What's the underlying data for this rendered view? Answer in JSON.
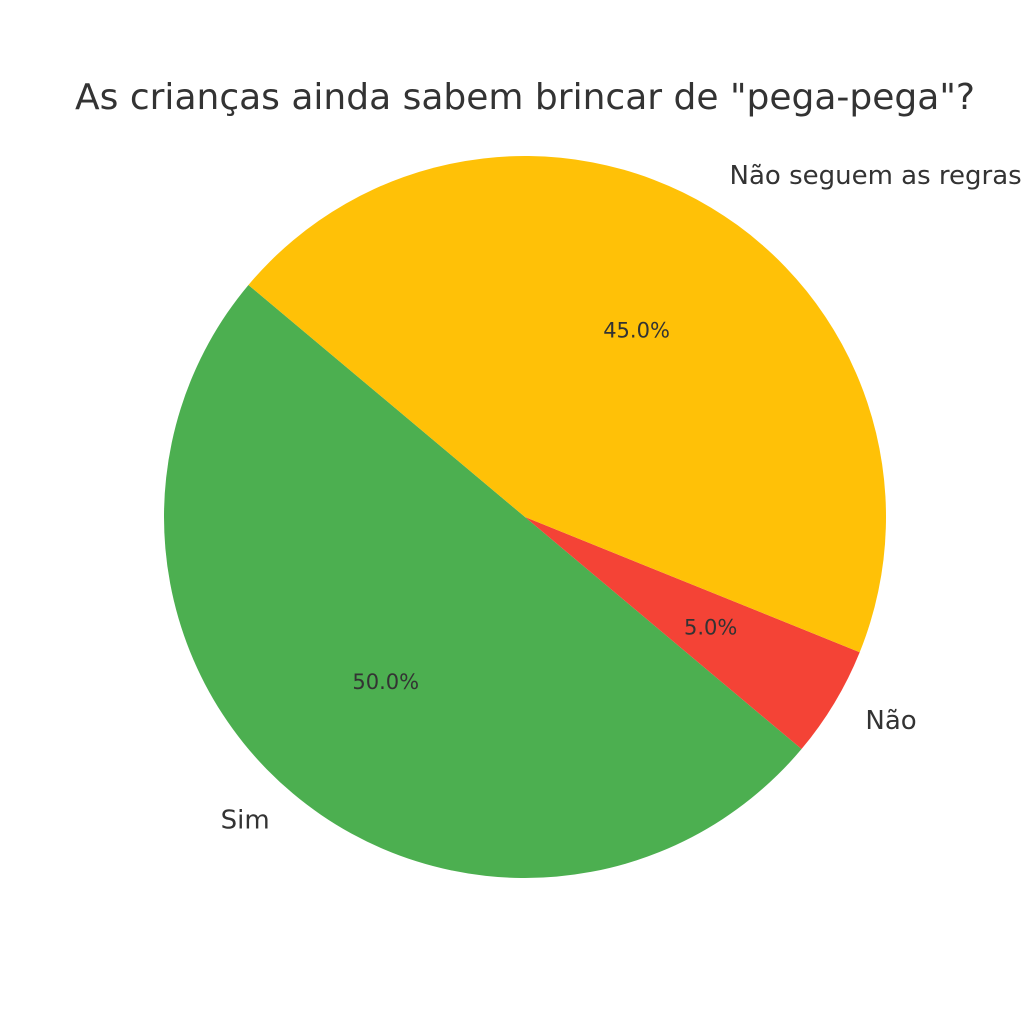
{
  "chart_data": {
    "type": "pie",
    "title": "As crianças ainda sabem brincar de \"pega-pega\"?",
    "slices": [
      {
        "label": "Sim",
        "value": 50.0,
        "pct_label": "50.0%",
        "color": "#4CAF50"
      },
      {
        "label": "Não",
        "value": 5.0,
        "pct_label": "5.0%",
        "color": "#F44336"
      },
      {
        "label": "Não seguem as regras",
        "value": 45.0,
        "pct_label": "45.0%",
        "color": "#FFC107"
      }
    ],
    "start_angle_deg": 140,
    "counterclock": true
  }
}
